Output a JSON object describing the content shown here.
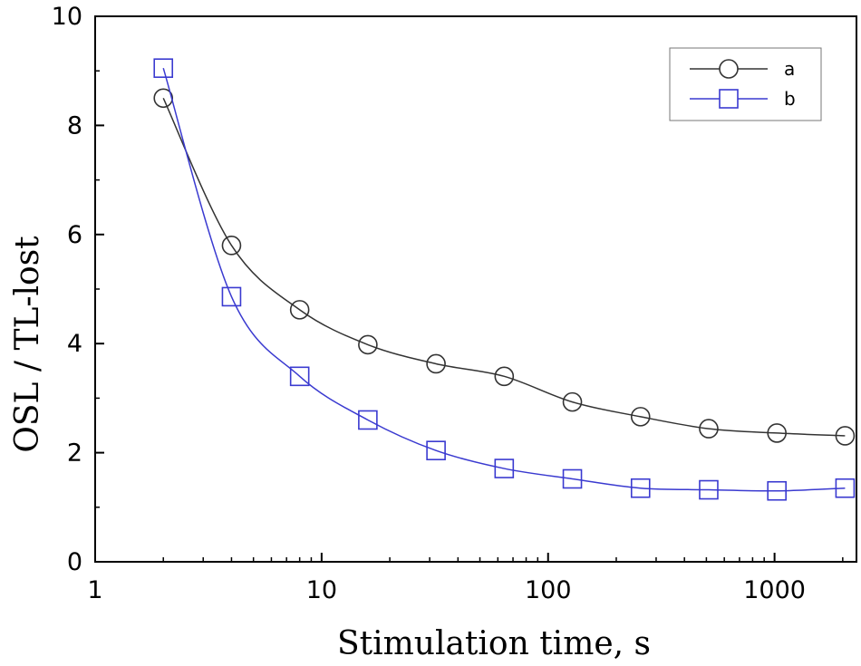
{
  "chart_data": {
    "type": "line",
    "xlabel": "Stimulation time, s",
    "ylabel": "OSL / TL-lost",
    "xscale": "log",
    "xlim": [
      1,
      2300
    ],
    "ylim": [
      0,
      10
    ],
    "x_ticks": [
      1,
      10,
      100,
      1000
    ],
    "x_tick_labels": [
      "1",
      "10",
      "100",
      "1000"
    ],
    "y_ticks": [
      0,
      2,
      4,
      6,
      8,
      10
    ],
    "y_tick_labels": [
      "0",
      "2",
      "4",
      "6",
      "8",
      "10"
    ],
    "grid": false,
    "legend_position": "top-right",
    "x": [
      2,
      4,
      8,
      16,
      32,
      64,
      128,
      256,
      512,
      1024,
      2048
    ],
    "series": [
      {
        "name": "a",
        "color": "#333333",
        "marker": "circle",
        "values": [
          8.5,
          5.8,
          4.62,
          3.98,
          3.63,
          3.4,
          2.93,
          2.66,
          2.44,
          2.36,
          2.31
        ]
      },
      {
        "name": "b",
        "color": "#3a3ad0",
        "marker": "square",
        "values": [
          9.05,
          4.86,
          3.4,
          2.6,
          2.04,
          1.71,
          1.52,
          1.35,
          1.32,
          1.3,
          1.35
        ]
      }
    ]
  }
}
